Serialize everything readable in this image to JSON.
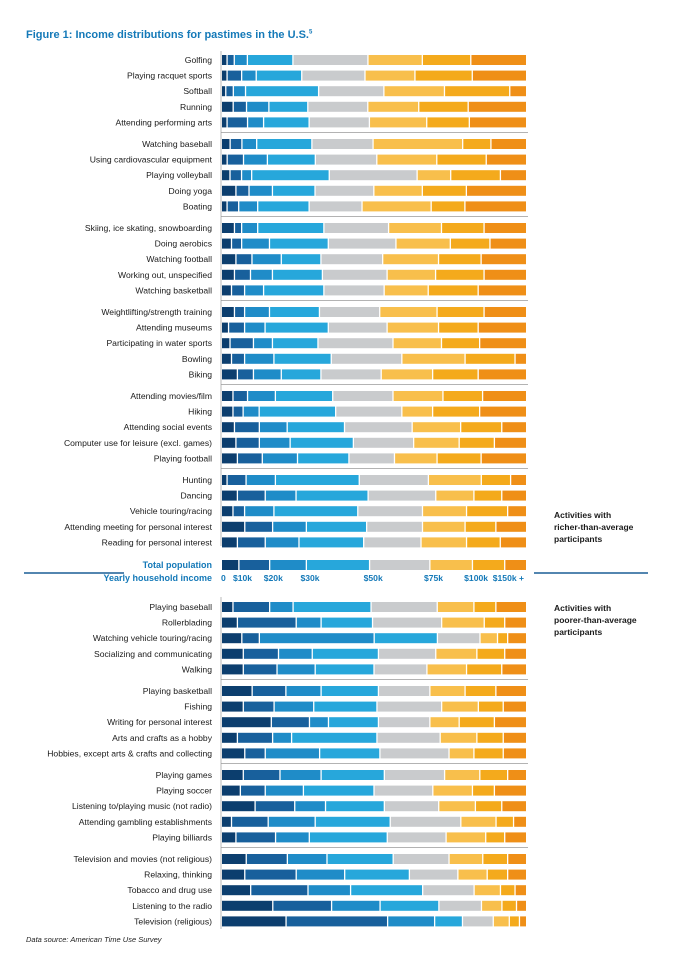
{
  "title": "Figure 1: Income distributions for pastimes in the U.S.",
  "title_footnote": "5",
  "source": "Data source: American Time Use Survey",
  "notes": {
    "richer": [
      "Activities with",
      "richer-than-average",
      "participants"
    ],
    "poorer": [
      "Activities with",
      "poorer-than-average",
      "participants"
    ]
  },
  "colors": [
    "#0c3e6e",
    "#18609c",
    "#1f8cc8",
    "#27a7db",
    "#c9cbcd",
    "#f8bf4c",
    "#f4aa1c",
    "#ef8f17"
  ],
  "chart_data": {
    "type": "bar",
    "stacked": true,
    "normalized": true,
    "xlabel": "Yearly household income",
    "income_bands": [
      "$0–10k",
      "$10–20k",
      "$20–30k",
      "$30–50k",
      "$50–75k",
      "$75–100k",
      "$100–150k",
      "$150k+"
    ],
    "total_population": {
      "label": "Total population",
      "values": [
        5.5,
        10,
        12,
        21,
        20,
        14,
        10.5,
        7
      ]
    },
    "axis_ticks": [
      "0",
      "$10k",
      "$20k",
      "$30k",
      "$50k",
      "$75k",
      "$100k",
      "$150k +"
    ],
    "richer_groups": [
      [
        {
          "label": "Golfing",
          "values": [
            1.5,
            2,
            4,
            15,
            25,
            18,
            16,
            18.5
          ]
        },
        {
          "label": "Playing racquet sports",
          "values": [
            1.5,
            4.5,
            4.5,
            15,
            21,
            16.5,
            19,
            18
          ]
        },
        {
          "label": "Softball",
          "values": [
            1,
            2,
            3.5,
            23,
            20.5,
            19,
            20.5,
            5
          ]
        },
        {
          "label": "Running",
          "values": [
            3.5,
            4,
            7,
            12.5,
            19.5,
            16.5,
            16,
            19
          ]
        },
        {
          "label": "Attending performing arts",
          "values": [
            1.5,
            6.5,
            5,
            15,
            20,
            19,
            14,
            19
          ]
        }
      ],
      [
        {
          "label": "Watching baseball",
          "values": [
            2.5,
            3.5,
            4.5,
            18,
            20,
            29.5,
            9,
            11.5
          ]
        },
        {
          "label": "Using cardiovascular equipment",
          "values": [
            1.5,
            5,
            7.5,
            15.5,
            20,
            19.5,
            16,
            13
          ]
        },
        {
          "label": "Playing volleyball",
          "values": [
            2.5,
            3.5,
            3,
            26,
            29.5,
            11,
            16.5,
            8.5
          ]
        },
        {
          "label": "Doing yoga",
          "values": [
            4.5,
            4,
            7.5,
            14,
            19.5,
            16,
            14.5,
            20
          ]
        },
        {
          "label": "Boating",
          "values": [
            1.5,
            3.5,
            6,
            17,
            17.5,
            23,
            11,
            20.5
          ]
        }
      ],
      [
        {
          "label": "Skiing, ice skating, snowboarding",
          "values": [
            4,
            2,
            5,
            22,
            21.5,
            17.5,
            14,
            14
          ]
        },
        {
          "label": "Doing aerobics",
          "values": [
            3,
            3,
            9,
            19.5,
            22.5,
            18,
            13,
            12
          ]
        },
        {
          "label": "Watching football",
          "values": [
            4.5,
            5,
            9.5,
            13,
            20.5,
            18.5,
            14,
            15
          ]
        },
        {
          "label": "Working out, unspecified",
          "values": [
            4,
            5,
            7,
            16.5,
            21.5,
            16,
            16,
            14
          ]
        },
        {
          "label": "Watching basketball",
          "values": [
            3,
            4,
            6,
            20,
            20,
            14.5,
            16.5,
            16
          ]
        }
      ],
      [
        {
          "label": "Weightlifting/strength training",
          "values": [
            4,
            3,
            8,
            16.5,
            20,
            19,
            15.5,
            14
          ]
        },
        {
          "label": "Attending museums",
          "values": [
            2,
            5,
            6.5,
            21,
            19.5,
            17,
            13,
            16
          ]
        },
        {
          "label": "Participating in water sports",
          "values": [
            2.5,
            7.5,
            6,
            15,
            25,
            16,
            12.5,
            15.5
          ]
        },
        {
          "label": "Bowling",
          "values": [
            3,
            4,
            9.5,
            19,
            23.5,
            21,
            16.5,
            3.5
          ]
        },
        {
          "label": "Biking",
          "values": [
            5,
            5,
            9,
            13,
            20,
            17,
            15,
            16
          ]
        }
      ],
      [
        {
          "label": "Attending movies/film",
          "values": [
            3.5,
            4.5,
            9,
            19,
            20,
            16.5,
            13,
            14.5
          ]
        },
        {
          "label": "Hiking",
          "values": [
            3.5,
            3,
            5,
            25.5,
            22,
            10,
            15.5,
            15.5
          ]
        },
        {
          "label": "Attending social events",
          "values": [
            4,
            8,
            9,
            19,
            22.5,
            16,
            13.5,
            8
          ]
        },
        {
          "label": "Computer use for leisure (excl. games)",
          "values": [
            4.5,
            7.5,
            10,
            21,
            20,
            15,
            11.5,
            10.5
          ]
        },
        {
          "label": "Playing football",
          "values": [
            5,
            8,
            11.5,
            17,
            15,
            14,
            14.5,
            15
          ]
        }
      ],
      [
        {
          "label": "Hunting",
          "values": [
            1.5,
            6,
            9.5,
            28,
            23,
            17.5,
            9.5,
            5
          ]
        },
        {
          "label": "Dancing",
          "values": [
            5,
            9,
            10,
            24,
            22.5,
            12.5,
            9,
            8
          ]
        },
        {
          "label": "Vehicle  touring/racing",
          "values": [
            3.5,
            3.5,
            9.5,
            28,
            21.5,
            14.5,
            13.5,
            6
          ]
        },
        {
          "label": "Attending meeting for personal interest",
          "values": [
            7.5,
            9,
            11,
            20,
            18.5,
            14,
            10,
            10
          ]
        },
        {
          "label": "Reading for personal interest",
          "values": [
            5,
            9,
            11,
            21.5,
            19,
            15,
            11,
            8.5
          ]
        }
      ]
    ],
    "poorer_groups": [
      [
        {
          "label": "Playing baseball",
          "values": [
            3.5,
            12,
            7.5,
            26,
            22,
            12,
            7,
            10
          ]
        },
        {
          "label": "Rollerblading",
          "values": [
            5,
            19.5,
            8,
            17,
            23,
            14,
            6.5,
            7
          ]
        },
        {
          "label": "Watching vehicle touring/racing",
          "values": [
            6.5,
            5.5,
            38.5,
            21,
            14,
            5.5,
            3,
            6
          ]
        },
        {
          "label": "Socializing and communicating",
          "values": [
            7,
            11.5,
            11,
            22,
            19,
            13.5,
            9,
            7
          ]
        },
        {
          "label": "Walking",
          "values": [
            7,
            11,
            12.5,
            19.5,
            17.5,
            13,
            11.5,
            8
          ]
        }
      ],
      [
        {
          "label": "Playing basketball",
          "values": [
            10,
            11,
            11.5,
            19,
            17,
            11.5,
            10,
            10
          ]
        },
        {
          "label": "Fishing",
          "values": [
            7,
            10,
            13,
            21,
            21.5,
            12,
            8,
            7.5
          ]
        },
        {
          "label": "Writing for personal interest",
          "values": [
            16.5,
            12.5,
            6,
            16.5,
            17,
            9.5,
            11.5,
            10.5
          ]
        },
        {
          "label": "Arts and crafts as a hobby",
          "values": [
            5,
            11.5,
            6,
            28.5,
            21,
            12,
            8.5,
            7.5
          ]
        },
        {
          "label": "Hobbies, except arts & crafts and collecting",
          "values": [
            7.5,
            6.5,
            18,
            20,
            23,
            8,
            9.5,
            7.5
          ]
        }
      ],
      [
        {
          "label": "Playing games",
          "values": [
            7,
            12,
            13.5,
            21,
            20,
            11.5,
            9,
            6
          ]
        },
        {
          "label": "Playing soccer",
          "values": [
            6,
            8,
            12.5,
            23.5,
            19.5,
            13,
            7,
            10.5
          ]
        },
        {
          "label": "Listening to/playing music (not radio)",
          "values": [
            11,
            13,
            10,
            19.5,
            18,
            12,
            8.5,
            8
          ]
        },
        {
          "label": "Attending gambling establishments",
          "values": [
            3,
            12,
            15.5,
            25,
            23.5,
            11.5,
            5.5,
            4
          ]
        },
        {
          "label": "Playing billiards",
          "values": [
            4.5,
            13,
            11,
            26,
            19.5,
            13,
            6,
            7
          ]
        }
      ],
      [
        {
          "label": "Television and movies (not religious)",
          "values": [
            8,
            13.5,
            13,
            22,
            18.5,
            11,
            8,
            6
          ]
        },
        {
          "label": "Relaxing, thinking",
          "values": [
            7.5,
            17,
            16,
            21.5,
            16,
            9.5,
            6.5,
            6
          ]
        },
        {
          "label": "Tobacco and drug use",
          "values": [
            9.5,
            19,
            14,
            24,
            17,
            8.5,
            4.5,
            3.5
          ]
        },
        {
          "label": "Listening to the radio",
          "values": [
            17,
            19.5,
            16,
            19.5,
            14,
            6.5,
            4.5,
            3
          ]
        },
        {
          "label": "Television (religious)",
          "values": [
            21.5,
            34,
            15.5,
            9,
            10,
            5,
            3,
            2
          ]
        }
      ]
    ]
  }
}
